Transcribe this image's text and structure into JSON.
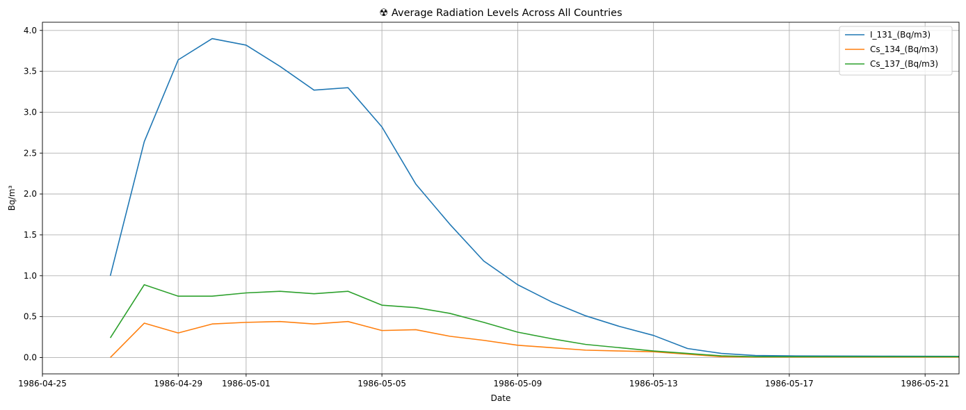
{
  "chart_data": {
    "type": "line",
    "title": "☢ Average Radiation Levels Across All Countries",
    "xlabel": "Date",
    "ylabel": "Bq/m³",
    "grid": true,
    "legend_position": "top-right",
    "xlim": [
      "1986-04-25",
      "1986-05-22"
    ],
    "ylim": [
      -0.2,
      4.1
    ],
    "x_ticks": [
      "1986-04-25",
      "1986-04-29",
      "1986-05-01",
      "1986-05-05",
      "1986-05-09",
      "1986-05-13",
      "1986-05-17",
      "1986-05-21"
    ],
    "y_ticks": [
      0.0,
      0.5,
      1.0,
      1.5,
      2.0,
      2.5,
      3.0,
      3.5,
      4.0
    ],
    "x": [
      "1986-04-27",
      "1986-04-28",
      "1986-04-29",
      "1986-04-30",
      "1986-05-01",
      "1986-05-02",
      "1986-05-03",
      "1986-05-04",
      "1986-05-05",
      "1986-05-06",
      "1986-05-07",
      "1986-05-08",
      "1986-05-09",
      "1986-05-10",
      "1986-05-11",
      "1986-05-12",
      "1986-05-13",
      "1986-05-14",
      "1986-05-15",
      "1986-05-16",
      "1986-05-17",
      "1986-05-18",
      "1986-05-19",
      "1986-05-20",
      "1986-05-21",
      "1986-05-22"
    ],
    "series": [
      {
        "name": "I_131_(Bq/m3)",
        "color": "#1f77b4",
        "values": [
          1.0,
          2.64,
          3.64,
          3.9,
          3.82,
          3.56,
          3.27,
          3.3,
          2.82,
          2.12,
          1.63,
          1.18,
          0.89,
          0.68,
          0.51,
          0.38,
          0.27,
          0.11,
          0.05,
          0.025,
          0.02,
          0.018,
          0.017,
          0.016,
          0.015,
          0.014
        ]
      },
      {
        "name": "Cs_134_(Bq/m3)",
        "color": "#ff7f0e",
        "values": [
          0.0,
          0.42,
          0.3,
          0.41,
          0.43,
          0.44,
          0.41,
          0.44,
          0.33,
          0.34,
          0.26,
          0.21,
          0.15,
          0.12,
          0.09,
          0.08,
          0.07,
          0.04,
          0.01,
          0.005,
          0.005,
          0.005,
          0.005,
          0.005,
          0.005,
          0.005
        ]
      },
      {
        "name": "Cs_137_(Bq/m3)",
        "color": "#2ca02c",
        "values": [
          0.24,
          0.89,
          0.75,
          0.75,
          0.79,
          0.81,
          0.78,
          0.81,
          0.64,
          0.61,
          0.54,
          0.43,
          0.31,
          0.23,
          0.16,
          0.12,
          0.08,
          0.05,
          0.02,
          0.01,
          0.01,
          0.01,
          0.01,
          0.01,
          0.01,
          0.01
        ]
      }
    ]
  }
}
